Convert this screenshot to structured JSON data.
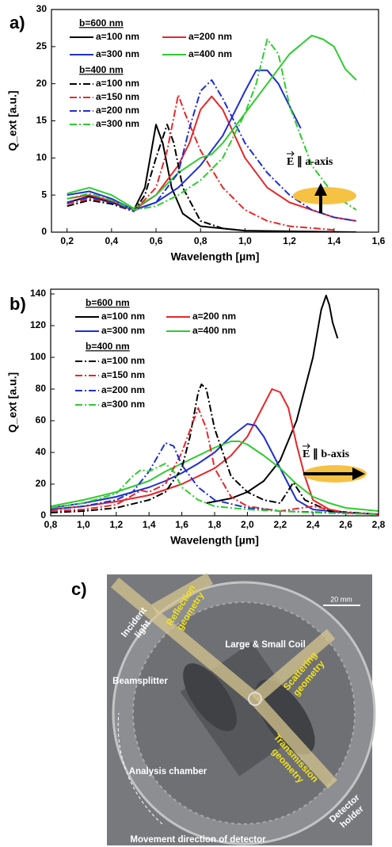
{
  "chart_data": [
    {
      "type": "line",
      "panel_label": "a)",
      "ylabel": "Q_ext [a.u.]",
      "xlabel": "Wavelength [µm]",
      "annotation": "E ∥ a-axis",
      "xlim": [
        0.13,
        1.6
      ],
      "ylim": [
        0,
        30
      ],
      "xticks": [
        {
          "value": 0.2,
          "label": "0,2"
        },
        {
          "value": 0.4,
          "label": "0,4"
        },
        {
          "value": 0.6,
          "label": "0,6"
        },
        {
          "value": 0.8,
          "label": "0,8"
        },
        {
          "value": 1.0,
          "label": "1,0"
        },
        {
          "value": 1.2,
          "label": "1,2"
        },
        {
          "value": 1.4,
          "label": "1,4"
        },
        {
          "value": 1.6,
          "label": "1,6"
        }
      ],
      "yticks": [
        0,
        5,
        10,
        15,
        20,
        25,
        30
      ],
      "series_groups": [
        {
          "title": "b=600 nm",
          "series": [
            {
              "name": "a=100 nm",
              "color": "#000000",
              "dash": "solid",
              "x": [
                0.2,
                0.3,
                0.4,
                0.5,
                0.55,
                0.6,
                0.63,
                0.67,
                0.72,
                0.8,
                1.0,
                1.5
              ],
              "values": [
                4,
                4.8,
                4,
                3,
                6,
                14.5,
                12,
                6,
                2.5,
                0.8,
                0.2,
                0
              ]
            },
            {
              "name": "a=200 nm",
              "color": "#e8262a",
              "dash": "solid",
              "x": [
                0.2,
                0.3,
                0.4,
                0.5,
                0.6,
                0.7,
                0.75,
                0.8,
                0.85,
                0.9,
                1.0,
                1.1,
                1.2,
                1.3,
                1.4,
                1.5
              ],
              "values": [
                4.5,
                5,
                4.2,
                3,
                5,
                9,
                12,
                16.5,
                18.3,
                16.5,
                10,
                6,
                4,
                3,
                2,
                1.5
              ]
            },
            {
              "name": "a=300 nm",
              "color": "#1f2fd0",
              "dash": "solid",
              "x": [
                0.2,
                0.3,
                0.4,
                0.5,
                0.6,
                0.7,
                0.8,
                0.9,
                1.0,
                1.05,
                1.1,
                1.15,
                1.2,
                1.25
              ],
              "values": [
                5,
                5.5,
                4.5,
                3,
                4,
                6,
                9,
                13,
                19,
                21.8,
                21.8,
                20,
                17,
                14
              ]
            },
            {
              "name": "a=400 nm",
              "color": "#2ecc2e",
              "dash": "solid",
              "x": [
                0.2,
                0.3,
                0.4,
                0.5,
                0.6,
                0.7,
                0.8,
                0.85,
                0.9,
                1.0,
                1.1,
                1.2,
                1.3,
                1.35,
                1.4,
                1.45,
                1.5
              ],
              "values": [
                5.2,
                6,
                5,
                3.2,
                5,
                8,
                10,
                10.5,
                12,
                16,
                20,
                24,
                26.5,
                26,
                25,
                22,
                20.5
              ]
            }
          ]
        },
        {
          "title": "b=400 nm",
          "series": [
            {
              "name": "a=100 nm",
              "color": "#000000",
              "dash": "dashdot",
              "x": [
                0.2,
                0.3,
                0.4,
                0.5,
                0.55,
                0.6,
                0.65,
                0.68,
                0.72,
                0.8,
                0.9,
                1.0
              ],
              "values": [
                3.5,
                4.3,
                3.8,
                2.8,
                5,
                10,
                14.5,
                12,
                6,
                1.5,
                0.5,
                0.2
              ]
            },
            {
              "name": "a=150 nm",
              "color": "#e8262a",
              "dash": "dashdot",
              "x": [
                0.2,
                0.3,
                0.4,
                0.5,
                0.6,
                0.65,
                0.7,
                0.73,
                0.8,
                0.9,
                1.0,
                1.1,
                1.2,
                1.4
              ],
              "values": [
                3.8,
                4.5,
                4,
                2.8,
                6,
                11,
                18.5,
                16,
                11,
                6,
                3,
                1.5,
                0.8,
                0.3
              ]
            },
            {
              "name": "a=200 nm",
              "color": "#1f2fd0",
              "dash": "dashdot",
              "x": [
                0.2,
                0.3,
                0.4,
                0.5,
                0.6,
                0.7,
                0.75,
                0.8,
                0.85,
                0.9,
                1.0,
                1.1,
                1.2,
                1.3,
                1.4,
                1.5
              ],
              "values": [
                4,
                4.7,
                4,
                2.9,
                4,
                8,
                14,
                19,
                20.5,
                18,
                12,
                8,
                5,
                3,
                2,
                1.5
              ]
            },
            {
              "name": "a=300 nm",
              "color": "#2ecc2e",
              "dash": "dashdot",
              "x": [
                0.2,
                0.3,
                0.4,
                0.5,
                0.6,
                0.7,
                0.8,
                0.9,
                1.0,
                1.05,
                1.1,
                1.15,
                1.2,
                1.3,
                1.4,
                1.5
              ],
              "values": [
                4.5,
                5.2,
                4.3,
                3,
                3.5,
                5,
                7,
                10,
                16,
                20,
                26,
                24,
                17,
                9,
                5,
                3
              ]
            }
          ]
        }
      ]
    },
    {
      "type": "line",
      "panel_label": "b)",
      "ylabel": "Q_ext [a.u.]",
      "xlabel": "Wavelength [µm]",
      "annotation": "E ∥ b-axis",
      "xlim": [
        0.8,
        2.8
      ],
      "ylim": [
        0,
        143
      ],
      "xticks": [
        {
          "value": 0.8,
          "label": "0,8"
        },
        {
          "value": 1.0,
          "label": "1,0"
        },
        {
          "value": 1.2,
          "label": "1,2"
        },
        {
          "value": 1.4,
          "label": "1,4"
        },
        {
          "value": 1.6,
          "label": "1,6"
        },
        {
          "value": 1.8,
          "label": "1,8"
        },
        {
          "value": 2.0,
          "label": "2,0"
        },
        {
          "value": 2.2,
          "label": "2,2"
        },
        {
          "value": 2.4,
          "label": "2,4"
        },
        {
          "value": 2.6,
          "label": "2,6"
        },
        {
          "value": 2.8,
          "label": "2,8"
        }
      ],
      "yticks": [
        0,
        20,
        40,
        60,
        80,
        100,
        120,
        140
      ],
      "series_groups": [
        {
          "title": "b=600 nm",
          "series": [
            {
              "name": "a=100 nm",
              "color": "#000000",
              "dash": "solid",
              "x": [
                1.75,
                1.9,
                2.0,
                2.1,
                2.2,
                2.3,
                2.4,
                2.45,
                2.48,
                2.5,
                2.52,
                2.55
              ],
              "values": [
                8,
                11,
                15,
                22,
                35,
                60,
                100,
                130,
                139,
                133,
                122,
                112
              ]
            },
            {
              "name": "a=200 nm",
              "color": "#e8262a",
              "dash": "solid",
              "x": [
                0.8,
                1.0,
                1.2,
                1.4,
                1.6,
                1.8,
                1.9,
                2.0,
                2.1,
                2.15,
                2.2,
                2.25,
                2.3,
                2.35,
                2.4,
                2.5,
                2.6,
                2.8
              ],
              "values": [
                4,
                6,
                9,
                13,
                20,
                30,
                38,
                50,
                70,
                80,
                78,
                68,
                45,
                25,
                10,
                4,
                2,
                1
              ]
            },
            {
              "name": "a=300 nm",
              "color": "#1f2fd0",
              "dash": "solid",
              "x": [
                0.8,
                1.0,
                1.2,
                1.4,
                1.5,
                1.6,
                1.7,
                1.8,
                1.9,
                2.0,
                2.05,
                2.1,
                2.2,
                2.3,
                2.4,
                2.6,
                2.8
              ],
              "values": [
                5,
                8,
                12,
                18,
                22,
                27,
                33,
                40,
                50,
                58,
                57,
                50,
                30,
                10,
                4,
                2,
                1
              ]
            },
            {
              "name": "a=400 nm",
              "color": "#2ecc2e",
              "dash": "solid",
              "x": [
                0.8,
                1.0,
                1.2,
                1.4,
                1.5,
                1.6,
                1.7,
                1.8,
                1.9,
                1.95,
                2.0,
                2.1,
                2.2,
                2.3,
                2.4,
                2.5,
                2.6,
                2.8
              ],
              "values": [
                6,
                10,
                15,
                22,
                28,
                33,
                38,
                43,
                47,
                47,
                45,
                38,
                30,
                20,
                12,
                8,
                5,
                3
              ]
            }
          ]
        },
        {
          "title": "b=400 nm",
          "series": [
            {
              "name": "a=100 nm",
              "color": "#000000",
              "dash": "dashdot",
              "x": [
                0.8,
                1.0,
                1.2,
                1.4,
                1.5,
                1.6,
                1.65,
                1.7,
                1.72,
                1.75,
                1.8,
                1.9,
                2.0,
                2.1,
                2.2,
                2.28,
                2.35,
                2.5,
                2.8
              ],
              "values": [
                2,
                3,
                5,
                10,
                15,
                30,
                50,
                78,
                83,
                80,
                55,
                25,
                15,
                10,
                8,
                21,
                10,
                3,
                1
              ]
            },
            {
              "name": "a=150 nm",
              "color": "#e8262a",
              "dash": "dashdot",
              "x": [
                0.8,
                1.0,
                1.2,
                1.35,
                1.4,
                1.5,
                1.6,
                1.7,
                1.75,
                1.8,
                1.9,
                2.0,
                2.2,
                2.4,
                2.6,
                2.8
              ],
              "values": [
                3,
                4,
                7,
                16,
                15,
                20,
                40,
                68,
                55,
                30,
                12,
                6,
                3,
                6,
                2,
                1
              ]
            },
            {
              "name": "a=200 nm",
              "color": "#1f2fd0",
              "dash": "dashdot",
              "x": [
                0.8,
                1.0,
                1.2,
                1.3,
                1.4,
                1.5,
                1.55,
                1.6,
                1.7,
                1.8,
                2.0,
                2.2,
                2.5,
                2.8
              ],
              "values": [
                4,
                6,
                10,
                15,
                28,
                46,
                44,
                32,
                18,
                10,
                5,
                3,
                2,
                1
              ]
            },
            {
              "name": "a=300 nm",
              "color": "#2ecc2e",
              "dash": "dashdot",
              "x": [
                0.8,
                1.0,
                1.2,
                1.3,
                1.35,
                1.4,
                1.5,
                1.55,
                1.6,
                1.7,
                1.8,
                2.0,
                2.4,
                2.8
              ],
              "values": [
                5,
                8,
                14,
                25,
                29,
                28,
                33,
                28,
                18,
                10,
                6,
                4,
                2,
                1
              ]
            }
          ]
        }
      ]
    }
  ],
  "panel_c": {
    "label": "c)",
    "scale_bar": "20 mm",
    "labels": [
      {
        "lines": [
          "Incident",
          "light"
        ]
      },
      {
        "lines": [
          "Reflection",
          "geometry"
        ]
      },
      {
        "lines": [
          "Large & Small Coil"
        ]
      },
      {
        "lines": [
          "Beamsplitter"
        ]
      },
      {
        "lines": [
          "Scattering",
          "geometry"
        ]
      },
      {
        "lines": [
          "Transmission",
          "geometry"
        ]
      },
      {
        "lines": [
          "Analysis chamber"
        ]
      },
      {
        "lines": [
          "Detector",
          "holder"
        ]
      },
      {
        "lines": [
          "Movement direction of detector"
        ]
      }
    ]
  }
}
